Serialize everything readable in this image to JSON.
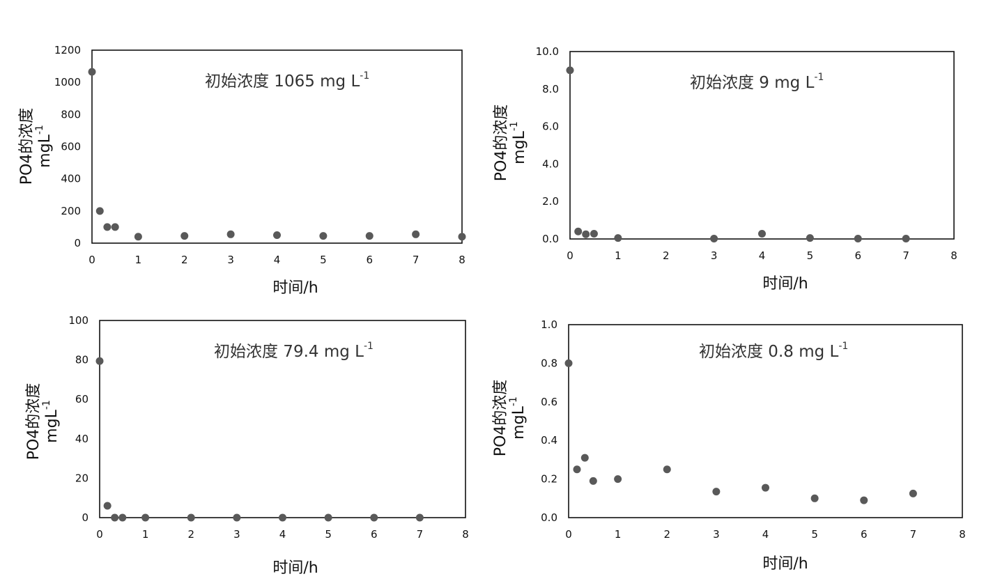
{
  "chart_data": [
    {
      "type": "scatter",
      "title": "",
      "annotation": {
        "text": "初始浓度 1065 mg L",
        "sup": "-1"
      },
      "xlabel": "时间/h",
      "ylabel": {
        "line1": "PO4的浓度",
        "line2": "mgL",
        "sup": "-1"
      },
      "xlim": [
        0,
        8
      ],
      "ylim": [
        0,
        1200
      ],
      "xticks": [
        "0",
        "1",
        "2",
        "3",
        "4",
        "5",
        "6",
        "7",
        "8"
      ],
      "yticks": [
        "0",
        "200",
        "400",
        "600",
        "800",
        "1000",
        "1200"
      ],
      "grid": false,
      "marker_color": "#595959",
      "x": [
        0,
        0.17,
        0.33,
        0.5,
        1,
        2,
        3,
        4,
        5,
        6,
        7,
        8
      ],
      "y": [
        1065,
        200,
        100,
        100,
        40,
        45,
        55,
        50,
        45,
        45,
        55,
        40
      ]
    },
    {
      "type": "scatter",
      "title": "",
      "annotation": {
        "text": "初始浓度 9 mg L",
        "sup": "-1"
      },
      "xlabel": "时间/h",
      "ylabel": {
        "line1": "PO4的浓度",
        "line2": "mgL",
        "sup": "-1"
      },
      "xlim": [
        0,
        8
      ],
      "ylim": [
        0,
        10
      ],
      "xticks": [
        "0",
        "1",
        "2",
        "3",
        "4",
        "5",
        "6",
        "7",
        "8"
      ],
      "yticks": [
        "0.0",
        "2.0",
        "4.0",
        "6.0",
        "8.0",
        "10.0"
      ],
      "grid": false,
      "marker_color": "#595959",
      "x": [
        0,
        0.17,
        0.33,
        0.5,
        1,
        3,
        4,
        5,
        6,
        7
      ],
      "y": [
        9.0,
        0.4,
        0.25,
        0.28,
        0.05,
        0.02,
        0.28,
        0.05,
        0.02,
        0.02
      ]
    },
    {
      "type": "scatter",
      "title": "",
      "annotation": {
        "text": "初始浓度 79.4 mg L",
        "sup": "-1"
      },
      "xlabel": "时间/h",
      "ylabel": {
        "line1": "PO4的浓度",
        "line2": "mgL",
        "sup": "-1"
      },
      "xlim": [
        0,
        8
      ],
      "ylim": [
        0,
        100
      ],
      "xticks": [
        "0",
        "1",
        "2",
        "3",
        "4",
        "5",
        "6",
        "7",
        "8"
      ],
      "yticks": [
        "0",
        "20",
        "40",
        "60",
        "80",
        "100"
      ],
      "grid": false,
      "marker_color": "#595959",
      "x": [
        0,
        0.17,
        0.33,
        0.5,
        1,
        2,
        3,
        4,
        5,
        6,
        7
      ],
      "y": [
        79.4,
        6,
        0,
        0,
        0,
        0,
        0,
        0,
        0,
        0,
        0
      ]
    },
    {
      "type": "scatter",
      "title": "",
      "annotation": {
        "text": "初始浓度 0.8 mg L",
        "sup": "-1"
      },
      "xlabel": "时间/h",
      "ylabel": {
        "line1": "PO4的浓度",
        "line2": "mgL",
        "sup": "-1"
      },
      "xlim": [
        0,
        8
      ],
      "ylim": [
        0,
        1
      ],
      "xticks": [
        "0",
        "1",
        "2",
        "3",
        "4",
        "5",
        "6",
        "7",
        "8"
      ],
      "yticks": [
        "0.0",
        "0.2",
        "0.4",
        "0.6",
        "0.8",
        "1.0"
      ],
      "grid": false,
      "marker_color": "#595959",
      "x": [
        0,
        0.17,
        0.33,
        0.5,
        1,
        2,
        3,
        4,
        5,
        6,
        7
      ],
      "y": [
        0.8,
        0.25,
        0.31,
        0.19,
        0.2,
        0.25,
        0.135,
        0.155,
        0.1,
        0.09,
        0.125
      ]
    }
  ]
}
